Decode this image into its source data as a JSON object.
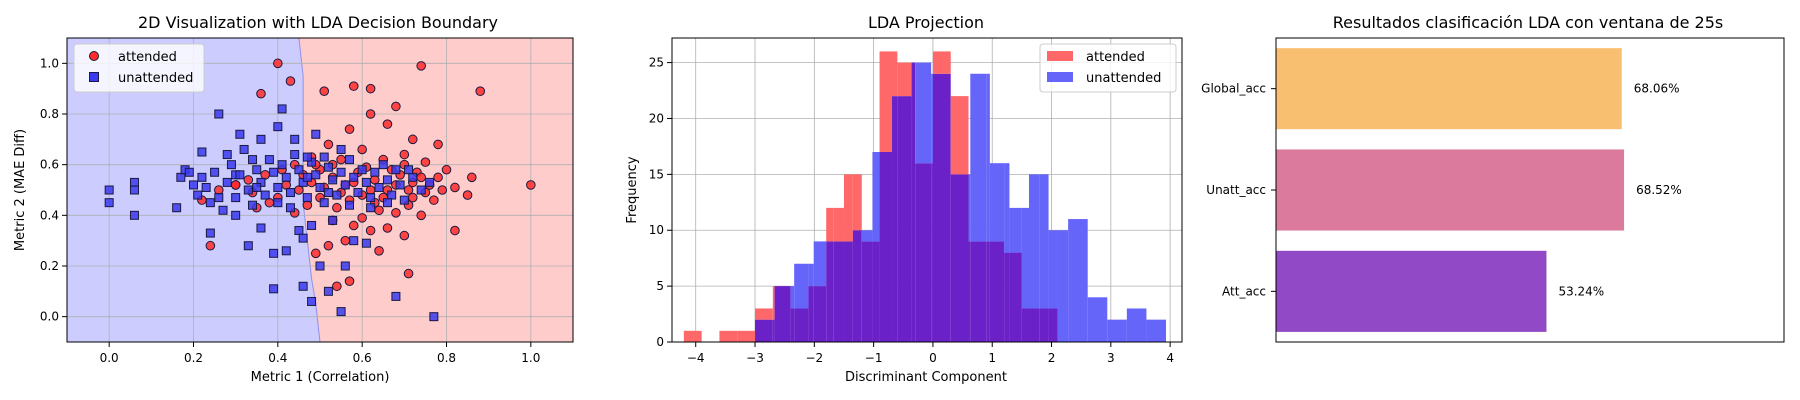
{
  "chart_data": [
    {
      "type": "scatter",
      "title": "2D Visualization with LDA Decision Boundary",
      "xlabel": "Metric 1 (Correlation)",
      "ylabel": "Metric 2 (MAE Diff)",
      "xlim": [
        -0.1,
        1.1
      ],
      "ylim": [
        -0.1,
        1.1
      ],
      "xticks": [
        "0.0",
        "0.2",
        "0.4",
        "0.6",
        "0.8",
        "1.0"
      ],
      "yticks": [
        "0.0",
        "0.2",
        "0.4",
        "0.6",
        "0.8",
        "1.0"
      ],
      "grid": true,
      "legend": "top-left",
      "legend_labels": [
        "attended",
        "unattended"
      ],
      "colors": {
        "attended_fill": "#ff2a2a",
        "unattended_fill": "#3a3af0",
        "marker_edge": "#1a1a40",
        "region_attended": "#ffcccc",
        "region_unattended": "#ccccff"
      },
      "boundary": [
        [
          0.5,
          -0.1
        ],
        [
          0.49,
          0.05
        ],
        [
          0.48,
          0.15
        ],
        [
          0.47,
          0.3
        ],
        [
          0.46,
          0.45
        ],
        [
          0.46,
          0.6
        ],
        [
          0.46,
          0.8
        ],
        [
          0.46,
          0.95
        ],
        [
          0.45,
          1.1
        ]
      ],
      "series": [
        {
          "name": "attended",
          "points": [
            [
              0.4,
              1.0
            ],
            [
              0.43,
              0.93
            ],
            [
              0.36,
              0.88
            ],
            [
              0.51,
              0.89
            ],
            [
              0.58,
              0.91
            ],
            [
              0.62,
              0.9
            ],
            [
              0.74,
              0.99
            ],
            [
              0.88,
              0.89
            ],
            [
              0.68,
              0.83
            ],
            [
              0.62,
              0.8
            ],
            [
              0.57,
              0.74
            ],
            [
              0.66,
              0.76
            ],
            [
              0.72,
              0.7
            ],
            [
              0.78,
              0.68
            ],
            [
              0.52,
              0.68
            ],
            [
              0.6,
              0.66
            ],
            [
              0.7,
              0.64
            ],
            [
              0.75,
              0.61
            ],
            [
              0.65,
              0.62
            ],
            [
              0.55,
              0.62
            ],
            [
              0.48,
              0.63
            ],
            [
              0.44,
              0.6
            ],
            [
              0.41,
              0.58
            ],
            [
              0.37,
              0.56
            ],
            [
              0.33,
              0.54
            ],
            [
              0.3,
              0.52
            ],
            [
              0.26,
              0.5
            ],
            [
              0.22,
              0.46
            ],
            [
              0.5,
              0.58
            ],
            [
              0.53,
              0.55
            ],
            [
              0.56,
              0.52
            ],
            [
              0.59,
              0.57
            ],
            [
              0.63,
              0.54
            ],
            [
              0.66,
              0.5
            ],
            [
              0.69,
              0.56
            ],
            [
              0.72,
              0.53
            ],
            [
              0.75,
              0.49
            ],
            [
              0.78,
              0.55
            ],
            [
              0.8,
              0.58
            ],
            [
              0.82,
              0.51
            ],
            [
              0.6,
              0.48
            ],
            [
              0.63,
              0.45
            ],
            [
              0.57,
              0.46
            ],
            [
              0.54,
              0.43
            ],
            [
              0.5,
              0.47
            ],
            [
              0.47,
              0.44
            ],
            [
              0.44,
              0.41
            ],
            [
              0.38,
              0.45
            ],
            [
              0.35,
              0.43
            ],
            [
              0.64,
              0.42
            ],
            [
              0.68,
              0.41
            ],
            [
              0.71,
              0.44
            ],
            [
              0.74,
              0.4
            ],
            [
              0.77,
              0.46
            ],
            [
              0.72,
              0.47
            ],
            [
              0.6,
              0.39
            ],
            [
              0.58,
              0.36
            ],
            [
              0.53,
              0.38
            ],
            [
              0.62,
              0.34
            ],
            [
              0.66,
              0.35
            ],
            [
              0.7,
              0.32
            ],
            [
              0.82,
              0.34
            ],
            [
              0.56,
              0.3
            ],
            [
              0.52,
              0.28
            ],
            [
              0.64,
              0.26
            ],
            [
              0.49,
              0.25
            ],
            [
              0.57,
              0.14
            ],
            [
              0.54,
              0.12
            ],
            [
              0.71,
              0.17
            ],
            [
              0.53,
              0.6
            ],
            [
              0.61,
              0.59
            ],
            [
              0.67,
              0.58
            ],
            [
              0.7,
              0.6
            ],
            [
              0.73,
              0.57
            ],
            [
              0.76,
              0.52
            ],
            [
              0.79,
              0.5
            ],
            [
              0.85,
              0.48
            ],
            [
              0.86,
              0.55
            ],
            [
              1.0,
              0.52
            ],
            [
              0.42,
              0.52
            ],
            [
              0.45,
              0.5
            ],
            [
              0.48,
              0.53
            ],
            [
              0.51,
              0.51
            ],
            [
              0.55,
              0.49
            ],
            [
              0.58,
              0.53
            ],
            [
              0.24,
              0.28
            ],
            [
              0.3,
              0.52
            ],
            [
              0.34,
              0.49
            ],
            [
              0.4,
              0.47
            ],
            [
              0.46,
              0.56
            ],
            [
              0.49,
              0.6
            ],
            [
              0.62,
              0.5
            ],
            [
              0.65,
              0.47
            ],
            [
              0.68,
              0.52
            ],
            [
              0.71,
              0.5
            ],
            [
              0.74,
              0.55
            ]
          ]
        },
        {
          "name": "unattended",
          "points": [
            [
              0.0,
              0.5
            ],
            [
              0.0,
              0.45
            ],
            [
              0.06,
              0.53
            ],
            [
              0.06,
              0.5
            ],
            [
              0.06,
              0.4
            ],
            [
              0.16,
              0.43
            ],
            [
              0.17,
              0.55
            ],
            [
              0.18,
              0.58
            ],
            [
              0.2,
              0.52
            ],
            [
              0.21,
              0.48
            ],
            [
              0.22,
              0.55
            ],
            [
              0.22,
              0.65
            ],
            [
              0.24,
              0.45
            ],
            [
              0.25,
              0.57
            ],
            [
              0.27,
              0.42
            ],
            [
              0.28,
              0.53
            ],
            [
              0.29,
              0.6
            ],
            [
              0.3,
              0.47
            ],
            [
              0.3,
              0.56
            ],
            [
              0.32,
              0.66
            ],
            [
              0.33,
              0.5
            ],
            [
              0.34,
              0.44
            ],
            [
              0.35,
              0.58
            ],
            [
              0.36,
              0.53
            ],
            [
              0.37,
              0.48
            ],
            [
              0.38,
              0.62
            ],
            [
              0.39,
              0.57
            ],
            [
              0.4,
              0.51
            ],
            [
              0.4,
              0.45
            ],
            [
              0.41,
              0.6
            ],
            [
              0.42,
              0.55
            ],
            [
              0.43,
              0.49
            ],
            [
              0.44,
              0.64
            ],
            [
              0.45,
              0.58
            ],
            [
              0.46,
              0.53
            ],
            [
              0.47,
              0.47
            ],
            [
              0.48,
              0.61
            ],
            [
              0.49,
              0.56
            ],
            [
              0.5,
              0.51
            ],
            [
              0.51,
              0.45
            ],
            [
              0.52,
              0.59
            ],
            [
              0.53,
              0.54
            ],
            [
              0.54,
              0.48
            ],
            [
              0.55,
              0.57
            ],
            [
              0.56,
              0.52
            ],
            [
              0.57,
              0.62
            ],
            [
              0.58,
              0.55
            ],
            [
              0.59,
              0.49
            ],
            [
              0.6,
              0.58
            ],
            [
              0.61,
              0.53
            ],
            [
              0.62,
              0.47
            ],
            [
              0.63,
              0.57
            ],
            [
              0.64,
              0.51
            ],
            [
              0.65,
              0.6
            ],
            [
              0.66,
              0.54
            ],
            [
              0.67,
              0.48
            ],
            [
              0.68,
              0.58
            ],
            [
              0.69,
              0.52
            ],
            [
              0.7,
              0.46
            ],
            [
              0.72,
              0.55
            ],
            [
              0.74,
              0.5
            ],
            [
              0.76,
              0.53
            ],
            [
              0.26,
              0.8
            ],
            [
              0.31,
              0.72
            ],
            [
              0.36,
              0.7
            ],
            [
              0.4,
              0.75
            ],
            [
              0.44,
              0.7
            ],
            [
              0.49,
              0.72
            ],
            [
              0.41,
              0.82
            ],
            [
              0.24,
              0.33
            ],
            [
              0.3,
              0.4
            ],
            [
              0.33,
              0.28
            ],
            [
              0.36,
              0.35
            ],
            [
              0.39,
              0.25
            ],
            [
              0.42,
              0.26
            ],
            [
              0.45,
              0.34
            ],
            [
              0.46,
              0.31
            ],
            [
              0.48,
              0.36
            ],
            [
              0.53,
              0.38
            ],
            [
              0.58,
              0.3
            ],
            [
              0.61,
              0.29
            ],
            [
              0.56,
              0.2
            ],
            [
              0.5,
              0.2
            ],
            [
              0.52,
              0.1
            ],
            [
              0.48,
              0.06
            ],
            [
              0.55,
              0.02
            ],
            [
              0.68,
              0.08
            ],
            [
              0.77,
              0.0
            ],
            [
              0.39,
              0.11
            ],
            [
              0.46,
              0.12
            ],
            [
              0.47,
              0.63
            ],
            [
              0.51,
              0.63
            ],
            [
              0.55,
              0.66
            ],
            [
              0.34,
              0.62
            ],
            [
              0.28,
              0.64
            ],
            [
              0.19,
              0.57
            ],
            [
              0.23,
              0.51
            ],
            [
              0.26,
              0.47
            ],
            [
              0.31,
              0.56
            ],
            [
              0.35,
              0.51
            ],
            [
              0.43,
              0.43
            ],
            [
              0.47,
              0.55
            ],
            [
              0.52,
              0.49
            ],
            [
              0.57,
              0.44
            ],
            [
              0.62,
              0.43
            ],
            [
              0.66,
              0.45
            ],
            [
              0.71,
              0.58
            ]
          ]
        }
      ]
    },
    {
      "type": "histogram",
      "title": "LDA Projection",
      "xlabel": "Discriminant Component",
      "ylabel": "Frequency",
      "xlim": [
        -4.4,
        4.2
      ],
      "ylim": [
        0,
        27.2
      ],
      "xticks": [
        "−4",
        "−3",
        "−2",
        "−1",
        "0",
        "1",
        "2",
        "3",
        "4"
      ],
      "yticks": [
        "0",
        "5",
        "10",
        "15",
        "20",
        "25"
      ],
      "grid": true,
      "legend": "top-right",
      "legend_labels": [
        "attended",
        "unattended"
      ],
      "colors": {
        "attended": "#ff6868",
        "unattended": "#6565fa",
        "overlap": "#6a22c8"
      },
      "series": [
        {
          "name": "attended",
          "bin_width": 0.3,
          "bins": [
            [
              -4.2,
              1
            ],
            [
              -3.9,
              0
            ],
            [
              -3.6,
              1
            ],
            [
              -3.3,
              1
            ],
            [
              -3.0,
              3
            ],
            [
              -2.7,
              5
            ],
            [
              -2.4,
              3
            ],
            [
              -2.1,
              5
            ],
            [
              -1.8,
              12
            ],
            [
              -1.5,
              15
            ],
            [
              -1.2,
              9
            ],
            [
              -0.9,
              26
            ],
            [
              -0.6,
              25
            ],
            [
              -0.3,
              16
            ],
            [
              0.0,
              26
            ],
            [
              0.3,
              22
            ],
            [
              0.6,
              9
            ],
            [
              0.9,
              9
            ],
            [
              1.2,
              8
            ],
            [
              1.5,
              3
            ],
            [
              1.8,
              3
            ]
          ]
        },
        {
          "name": "unattended",
          "bin_width": 0.33,
          "bins": [
            [
              -3.0,
              2
            ],
            [
              -2.67,
              5
            ],
            [
              -2.34,
              7
            ],
            [
              -2.01,
              9
            ],
            [
              -1.68,
              9
            ],
            [
              -1.35,
              10
            ],
            [
              -1.02,
              17
            ],
            [
              -0.69,
              22
            ],
            [
              -0.36,
              25
            ],
            [
              -0.03,
              24
            ],
            [
              0.3,
              15
            ],
            [
              0.63,
              24
            ],
            [
              0.96,
              16
            ],
            [
              1.29,
              12
            ],
            [
              1.62,
              15
            ],
            [
              1.95,
              10
            ],
            [
              2.28,
              11
            ],
            [
              2.61,
              4
            ],
            [
              2.94,
              2
            ],
            [
              3.27,
              3
            ],
            [
              3.6,
              2
            ]
          ]
        }
      ]
    },
    {
      "type": "bar",
      "orientation": "horizontal",
      "title": "Resultados clasificación LDA con ventana de 25s",
      "categories": [
        "Global_acc",
        "Unatt_acc",
        "Att_acc"
      ],
      "values": [
        68.06,
        68.52,
        53.24
      ],
      "labels": [
        "68.06%",
        "68.52%",
        "53.24%"
      ],
      "colors": [
        "#f9bf70",
        "#dc7a9e",
        "#9249c5"
      ],
      "xlim": [
        0,
        100
      ]
    }
  ]
}
